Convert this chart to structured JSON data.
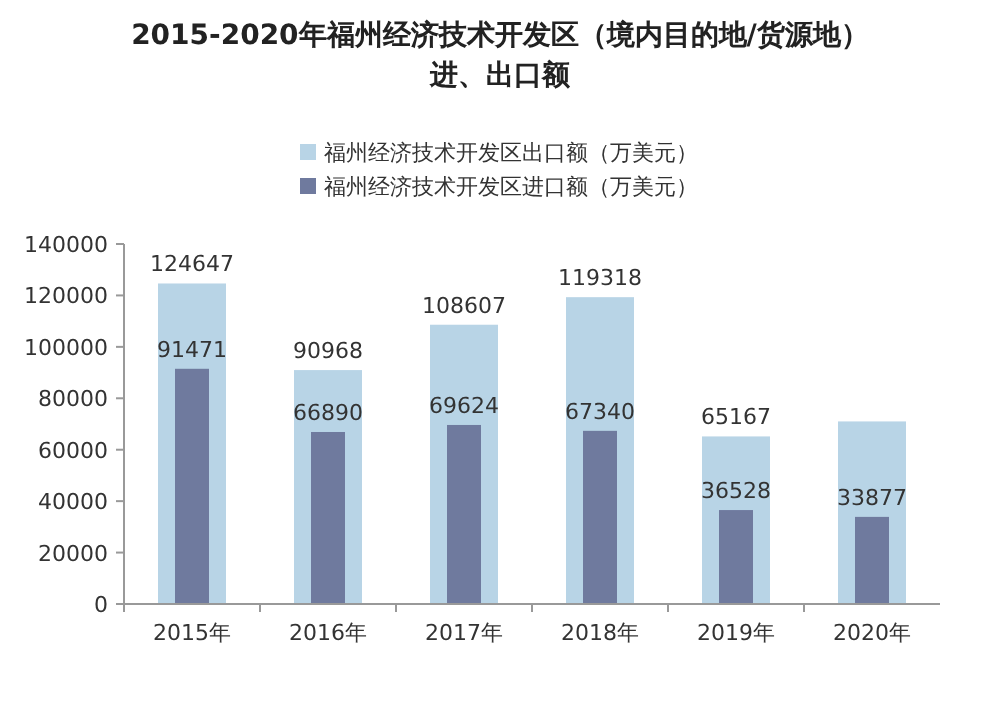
{
  "chart_data": {
    "type": "bar",
    "title": "2015-2020年福州经济技术开发区（境内目的地/货源地）进、出口额",
    "categories": [
      "2015年",
      "2016年",
      "2017年",
      "2018年",
      "2019年",
      "2020年"
    ],
    "series": [
      {
        "name": "福州经济技术开发区出口额（万美元）",
        "color": "#b8d4e6",
        "values": [
          124647,
          90968,
          108607,
          119318,
          65167,
          71000
        ],
        "value_labels": [
          "124647",
          "90968",
          "108607",
          "119318",
          "65167",
          null
        ]
      },
      {
        "name": "福州经济技术开发区进口额（万美元）",
        "color": "#6f7a9e",
        "values": [
          91471,
          66890,
          69624,
          67340,
          36528,
          33877
        ],
        "value_labels": [
          "91471",
          "66890",
          "69624",
          "67340",
          "36528",
          "33877"
        ]
      }
    ],
    "ylim": [
      0,
      140000
    ],
    "yticks": [
      0,
      20000,
      40000,
      60000,
      80000,
      100000,
      120000,
      140000
    ],
    "legend": "top"
  }
}
